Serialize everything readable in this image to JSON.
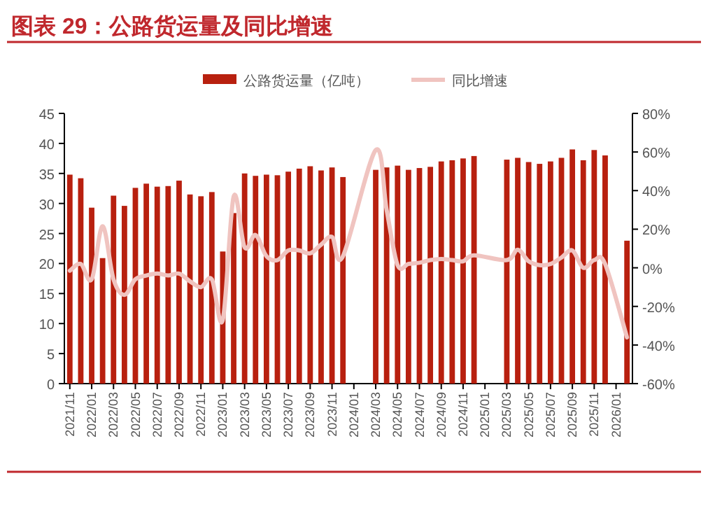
{
  "chart_data": {
    "type": "bar",
    "title": "图表 29：公路货运量及同比增速",
    "categories": [
      "2021/11",
      null,
      "2022/01",
      null,
      "2022/03",
      null,
      "2022/05",
      null,
      "2022/07",
      null,
      "2022/09",
      null,
      "2022/11",
      null,
      "2023/01",
      null,
      "2023/03",
      null,
      "2023/05",
      null,
      "2023/07",
      null,
      "2023/09",
      null,
      "2023/11",
      null,
      "2024/01",
      null,
      "2024/03",
      null,
      "2024/05",
      null,
      "2024/07",
      null,
      "2024/09",
      null,
      "2024/11",
      null,
      "2025/01",
      null,
      "2025/03",
      null,
      "2025/05",
      null,
      "2025/07",
      null,
      "2025/09",
      null,
      "2025/11",
      null,
      "2026/01",
      null
    ],
    "series": [
      {
        "name": "公路货运量（亿吨）",
        "color": "#b8200f",
        "values": [
          34.8,
          34.2,
          29.3,
          20.9,
          31.3,
          29.6,
          32.6,
          33.3,
          32.8,
          32.9,
          33.8,
          31.5,
          31.2,
          31.9,
          22.0,
          28.4,
          35.0,
          34.6,
          34.8,
          34.7,
          35.3,
          35.8,
          36.2,
          35.5,
          36.0,
          34.4,
          null,
          null,
          35.6,
          36.0,
          36.3,
          35.6,
          35.9,
          36.1,
          37.0,
          37.2,
          37.5,
          37.9,
          null,
          null,
          37.3,
          37.6,
          36.9,
          36.6,
          37.0,
          37.6,
          39.0,
          37.2,
          38.9,
          38.0,
          null,
          23.8
        ]
      },
      {
        "name": "同比增速",
        "type": "line",
        "axis": "y2",
        "color": "#f0c4c0",
        "values": [
          -1.5,
          2,
          -6,
          21.5,
          -6,
          -14,
          -6,
          -4,
          -3,
          -4,
          -3,
          -7,
          -10,
          -6,
          -27,
          37,
          10.6,
          17,
          6,
          4,
          9,
          9,
          7.5,
          12,
          16,
          6,
          null,
          null,
          61,
          30,
          1.4,
          2,
          2.6,
          4,
          4.6,
          4,
          3.4,
          6.5,
          null,
          null,
          4,
          9.4,
          3.4,
          1.4,
          2,
          5.3,
          9,
          0,
          4,
          2,
          null,
          -36
        ]
      }
    ],
    "ylim": [
      0,
      45
    ],
    "yticks": [
      0,
      5,
      10,
      15,
      20,
      25,
      30,
      35,
      40,
      45
    ],
    "y2lim": [
      -60,
      80
    ],
    "y2ticks": [
      {
        "value": -60,
        "label": "-60%"
      },
      {
        "value": -40,
        "label": "-40%"
      },
      {
        "value": -20,
        "label": "-20%"
      },
      {
        "value": 0,
        "label": "0%"
      },
      {
        "value": 20,
        "label": "20%"
      },
      {
        "value": 40,
        "label": "40%"
      },
      {
        "value": 60,
        "label": "60%"
      },
      {
        "value": 80,
        "label": "80%"
      }
    ],
    "legend": "top",
    "grid": false
  }
}
